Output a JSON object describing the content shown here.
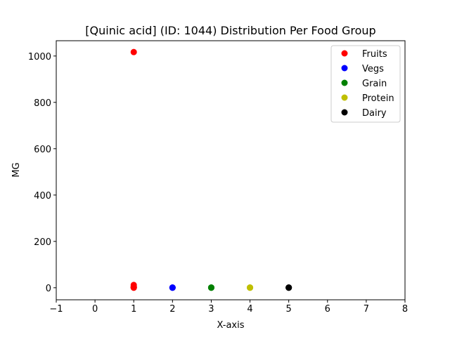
{
  "chart_data": {
    "type": "scatter",
    "title": "[Quinic acid] (ID: 1044) Distribution Per Food Group",
    "xlabel": "X-axis",
    "ylabel": "MG",
    "xlim": [
      -1,
      8
    ],
    "ylim": [
      -52,
      1066
    ],
    "xticks": [
      -1,
      0,
      1,
      2,
      3,
      4,
      5,
      6,
      7,
      8
    ],
    "yticks": [
      0,
      200,
      400,
      600,
      800,
      1000
    ],
    "xtick_labels": [
      "−1",
      "0",
      "1",
      "2",
      "3",
      "4",
      "5",
      "6",
      "7",
      "8"
    ],
    "ytick_labels": [
      "0",
      "200",
      "400",
      "600",
      "800",
      "1000"
    ],
    "grid": false,
    "legend_position": "top-right",
    "series": [
      {
        "name": "Fruits",
        "color": "#ff0000",
        "x": [
          1,
          1,
          1,
          1,
          1,
          1
        ],
        "y": [
          1017,
          12,
          5,
          2,
          1,
          0
        ]
      },
      {
        "name": "Vegs",
        "color": "#0000ff",
        "x": [
          2,
          2,
          2
        ],
        "y": [
          1,
          0.5,
          0
        ]
      },
      {
        "name": "Grain",
        "color": "#008000",
        "x": [
          3,
          3,
          3
        ],
        "y": [
          1,
          0.5,
          0
        ]
      },
      {
        "name": "Protein",
        "color": "#bfbf00",
        "x": [
          4,
          4,
          4
        ],
        "y": [
          1,
          0.5,
          0
        ]
      },
      {
        "name": "Dairy",
        "color": "#000000",
        "x": [
          5,
          5,
          5
        ],
        "y": [
          1,
          0.5,
          0
        ]
      }
    ]
  }
}
